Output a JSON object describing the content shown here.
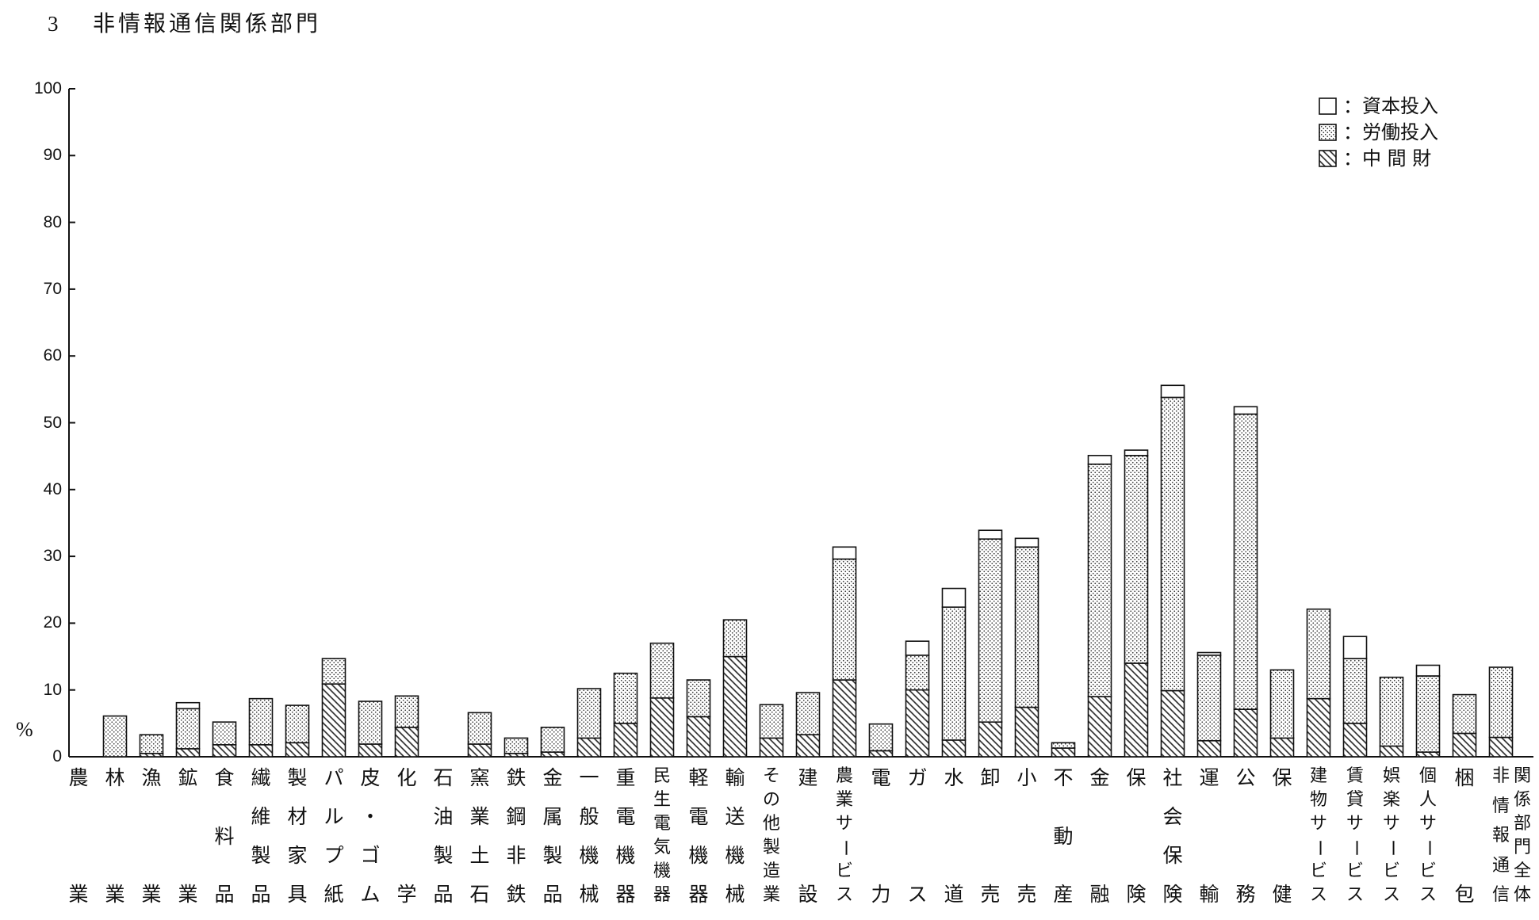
{
  "chart_data": {
    "type": "bar",
    "stacked": true,
    "title_number": "3",
    "title": "非情報通信関係部門",
    "ylabel": "%",
    "ylim": [
      0,
      100
    ],
    "yticks": [
      0,
      10,
      20,
      30,
      40,
      50,
      60,
      70,
      80,
      90,
      100
    ],
    "grid": false,
    "legend_position": "top-right",
    "legend_separator": "：",
    "categories": [
      "農業",
      "林業",
      "漁業",
      "鉱業",
      "食料品",
      "繊維製品",
      "製材家具",
      "パルプ紙",
      "皮・ゴム",
      "化学",
      "石油製品",
      "窯業土石",
      "鉄鋼非鉄",
      "金属製品",
      "一般機械",
      "重電機器",
      "民生電気機器",
      "軽電機器",
      "輸送機械",
      "その他製造業",
      "建設",
      "農業サービス",
      "電力",
      "ガス",
      "水道",
      "卸売",
      "小売",
      "不動産",
      "金融",
      "保険",
      "社会保険",
      "運輸",
      "公務",
      "保健",
      "建物サービス",
      "賃貸サービス",
      "娯楽サービス",
      "個人サービス",
      "梱包",
      "非情報通信関係部門全体"
    ],
    "series": [
      {
        "name": "資本投入",
        "values": [
          0,
          0,
          0,
          0.9,
          0,
          0,
          0,
          0,
          0,
          0,
          0,
          0,
          0,
          0,
          0,
          0,
          0,
          0,
          0,
          0,
          0,
          1.8,
          0,
          2.1,
          2.8,
          1.3,
          1.3,
          0,
          1.3,
          0.8,
          1.8,
          0.4,
          1.1,
          0,
          0,
          3.3,
          0,
          1.6,
          0,
          0
        ]
      },
      {
        "name": "労働投入",
        "values": [
          0,
          6.1,
          2.8,
          6.0,
          3.4,
          6.9,
          5.6,
          3.8,
          6.4,
          4.7,
          0,
          4.7,
          2.3,
          3.7,
          7.4,
          7.5,
          8.2,
          5.5,
          5.5,
          5.0,
          6.3,
          18.1,
          4.0,
          5.2,
          19.9,
          27.4,
          24.0,
          0.8,
          34.8,
          31.1,
          43.9,
          12.8,
          44.2,
          10.2,
          13.4,
          9.7,
          10.3,
          11.4,
          5.8,
          10.5
        ]
      },
      {
        "name": "中 間 財",
        "values": [
          0,
          0,
          0.5,
          1.2,
          1.8,
          1.8,
          2.1,
          10.9,
          1.9,
          4.4,
          0,
          1.9,
          0.5,
          0.7,
          2.8,
          5.0,
          8.8,
          6.0,
          15.0,
          2.8,
          3.3,
          11.5,
          0.9,
          10.0,
          2.5,
          5.2,
          7.4,
          1.3,
          9.0,
          14.0,
          9.9,
          2.4,
          7.1,
          2.8,
          8.7,
          5.0,
          1.6,
          0.7,
          3.5,
          2.9
        ]
      }
    ]
  }
}
